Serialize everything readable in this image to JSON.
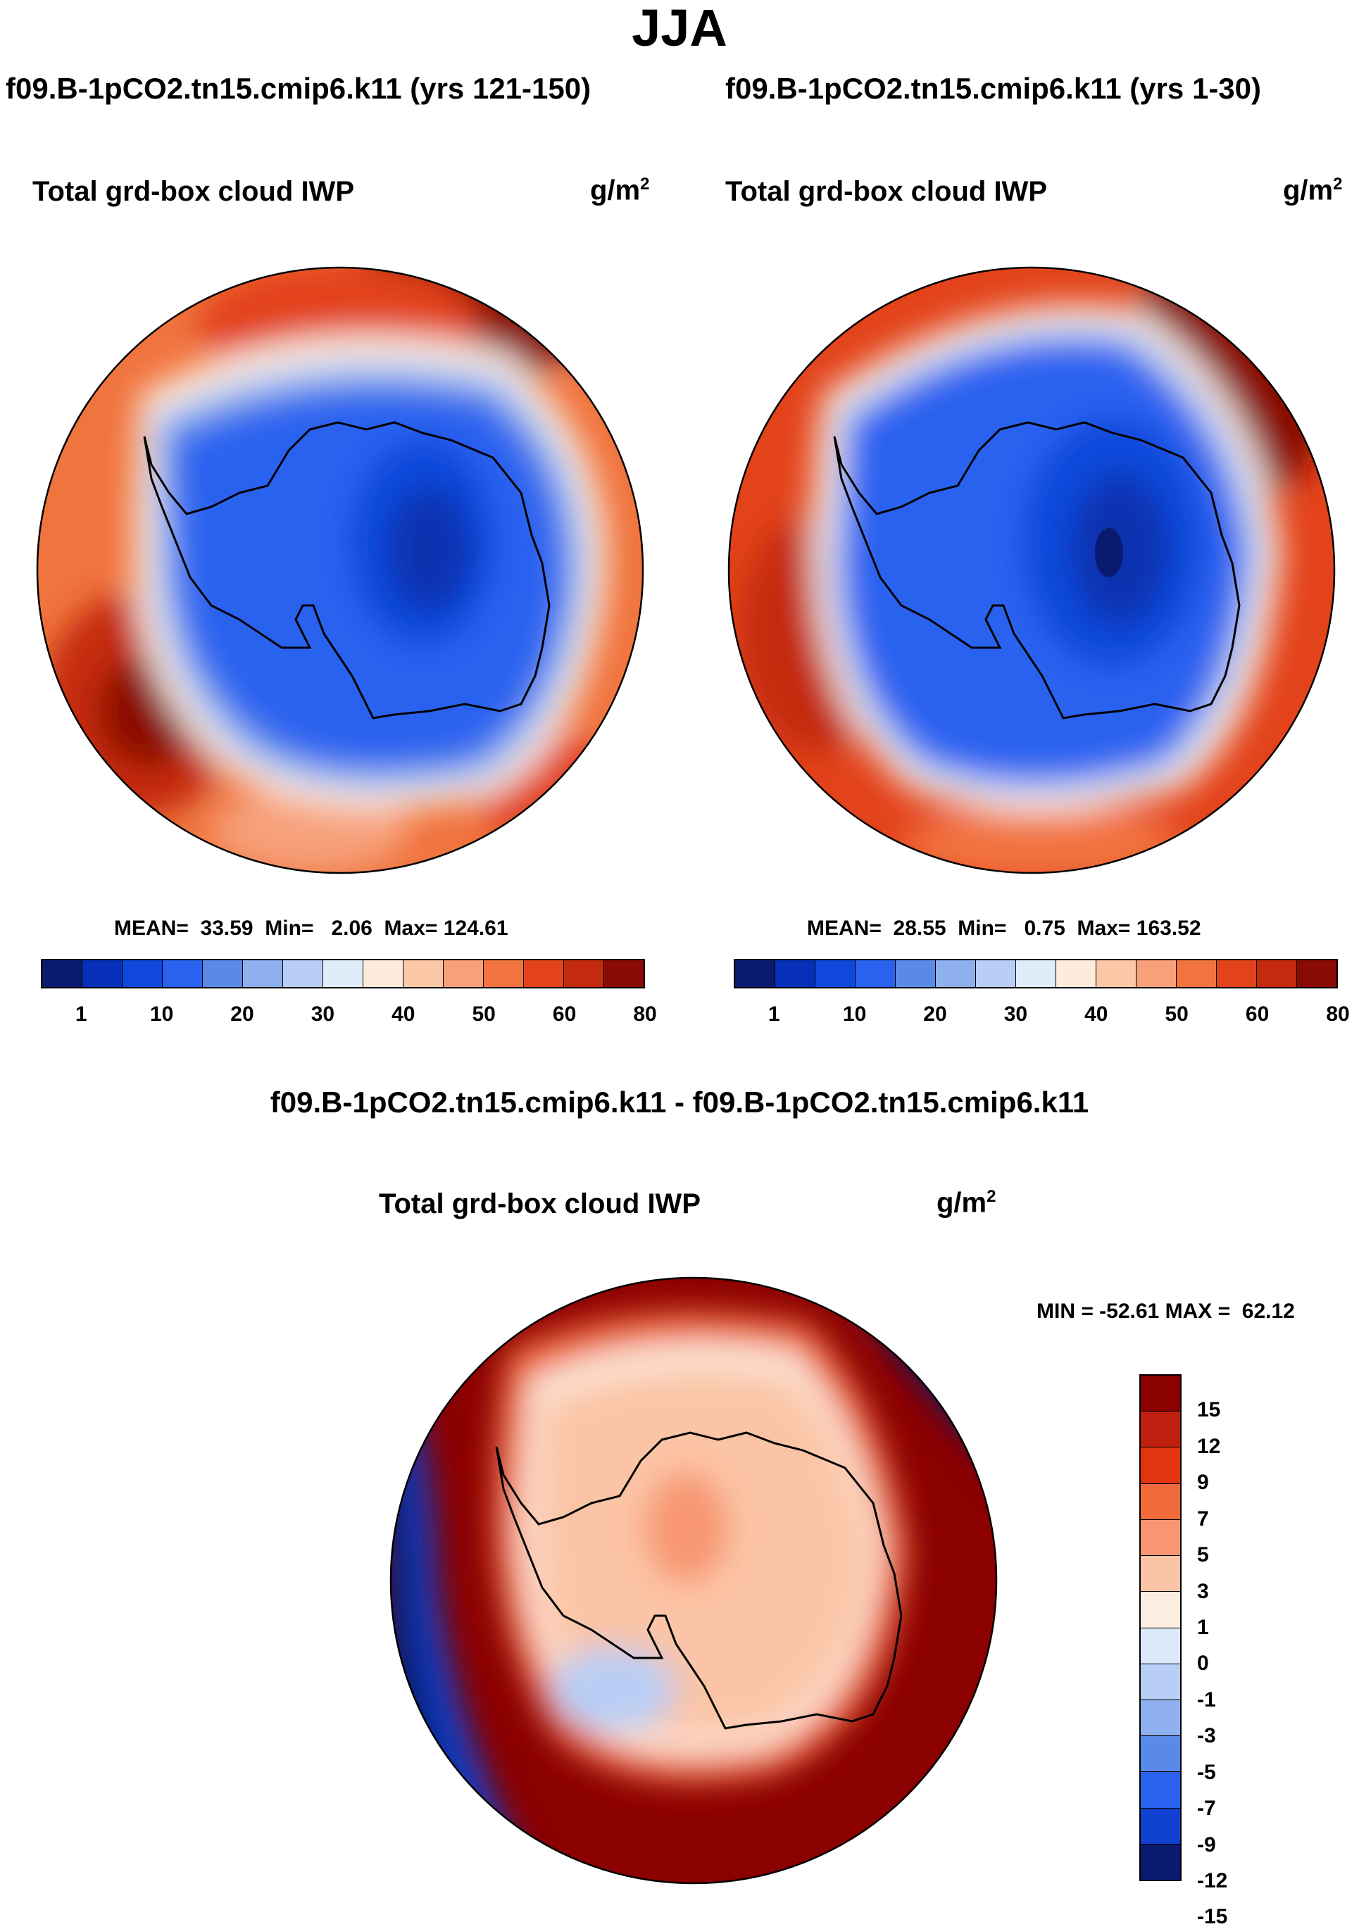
{
  "page": {
    "title": "JJA",
    "diff_title": "f09.B-1pCO2.tn15.cmip6.k11 - f09.B-1pCO2.tn15.cmip6.k11"
  },
  "palette_abs": [
    "#0a1a6e",
    "#0630b8",
    "#1148dc",
    "#2a62f0",
    "#5a8ae8",
    "#8fb0ee",
    "#b8cef5",
    "#e0ecfa",
    "#fdebdc",
    "#fbc7a7",
    "#f7a07a",
    "#f27340",
    "#e3431b",
    "#c42a10",
    "#8a0a05"
  ],
  "palette_diff": [
    "#8b0000",
    "#c02010",
    "#e03510",
    "#f06a3a",
    "#f79670",
    "#fbc4a6",
    "#fdece0",
    "#dce9fa",
    "#b8cef5",
    "#8fb0ee",
    "#5a8ae8",
    "#2a62f0",
    "#1040d0",
    "#0a1a6e"
  ],
  "chart_data": [
    {
      "type": "heatmap",
      "name": "panel-1",
      "case": "f09.B-1pCO2.tn15.cmip6.k11 (yrs 121-150)",
      "variable": "Total grd-box cloud IWP",
      "units": "g/m",
      "units_exp": "2",
      "stats": {
        "mean": "33.59",
        "min": "2.06",
        "max": "124.61"
      },
      "stats_label": {
        "mean": "MEAN=",
        "min": "Min=",
        "max": "Max="
      },
      "colorbar_levels": [
        "1",
        "10",
        "20",
        "30",
        "40",
        "50",
        "60",
        "80"
      ],
      "projection": "South polar stereographic"
    },
    {
      "type": "heatmap",
      "name": "panel-2",
      "case": "f09.B-1pCO2.tn15.cmip6.k11 (yrs 1-30)",
      "variable": "Total grd-box cloud IWP",
      "units": "g/m",
      "units_exp": "2",
      "stats": {
        "mean": "28.55",
        "min": "0.75",
        "max": "163.52"
      },
      "stats_label": {
        "mean": "MEAN=",
        "min": "Min=",
        "max": "Max="
      },
      "colorbar_levels": [
        "1",
        "10",
        "20",
        "30",
        "40",
        "50",
        "60",
        "80"
      ],
      "projection": "South polar stereographic"
    },
    {
      "type": "heatmap",
      "name": "difference",
      "variable": "Total grd-box cloud IWP",
      "units": "g/m",
      "units_exp": "2",
      "stats_text": "MIN = -52.61 MAX =  62.12",
      "colorbar_levels": [
        "15",
        "12",
        "9",
        "7",
        "5",
        "3",
        "1",
        "0",
        "-1",
        "-3",
        "-5",
        "-7",
        "-9",
        "-12",
        "-15"
      ],
      "projection": "South polar stereographic"
    }
  ]
}
